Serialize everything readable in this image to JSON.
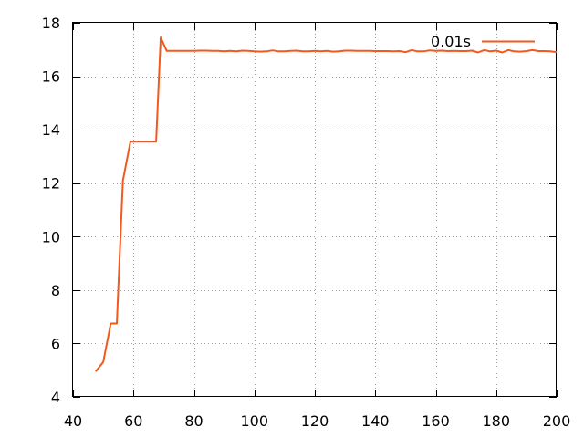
{
  "chart_data": {
    "type": "line",
    "title": "",
    "xlabel": "",
    "ylabel": "",
    "xlim": [
      40,
      200
    ],
    "ylim": [
      4,
      18
    ],
    "xticks": [
      40,
      60,
      80,
      100,
      120,
      140,
      160,
      180,
      200
    ],
    "yticks": [
      4,
      6,
      8,
      10,
      12,
      14,
      16,
      18
    ],
    "grid": true,
    "legend_position": "top-right",
    "series": [
      {
        "name": "0.01s",
        "color": "#f25a1d",
        "x": [
          47.5,
          50,
          52.5,
          54.5,
          56.5,
          59,
          61,
          63,
          65,
          67.5,
          69,
          71,
          73,
          75,
          77.5,
          80,
          82,
          84,
          86,
          88,
          90,
          92,
          94,
          96,
          98,
          100,
          102,
          104,
          106,
          108,
          110,
          112,
          114,
          116,
          118,
          120,
          122,
          124,
          126,
          128,
          130,
          132,
          134,
          136,
          138,
          140,
          142,
          144,
          146,
          148,
          150,
          152,
          154,
          156,
          158,
          160,
          162,
          164,
          166,
          168,
          170,
          172,
          174,
          176,
          178,
          180,
          182,
          184,
          186,
          188,
          190,
          192,
          194,
          196,
          198,
          200
        ],
        "values": [
          4.95,
          5.3,
          6.75,
          6.75,
          12.1,
          13.55,
          13.55,
          13.55,
          13.55,
          13.55,
          17.45,
          16.95,
          16.95,
          16.95,
          16.95,
          16.95,
          16.96,
          16.96,
          16.95,
          16.95,
          16.93,
          16.95,
          16.93,
          16.96,
          16.95,
          16.93,
          16.92,
          16.93,
          16.97,
          16.93,
          16.93,
          16.95,
          16.96,
          16.93,
          16.93,
          16.95,
          16.93,
          16.95,
          16.92,
          16.93,
          16.96,
          16.96,
          16.95,
          16.95,
          16.95,
          16.94,
          16.94,
          16.94,
          16.93,
          16.94,
          16.9,
          16.98,
          16.93,
          16.93,
          16.97,
          16.95,
          16.96,
          16.94,
          16.95,
          16.94,
          16.94,
          16.96,
          16.89,
          16.98,
          16.93,
          16.96,
          16.89,
          16.98,
          16.93,
          16.92,
          16.94,
          16.98,
          16.94,
          16.94,
          16.93,
          16.9
        ]
      }
    ]
  }
}
